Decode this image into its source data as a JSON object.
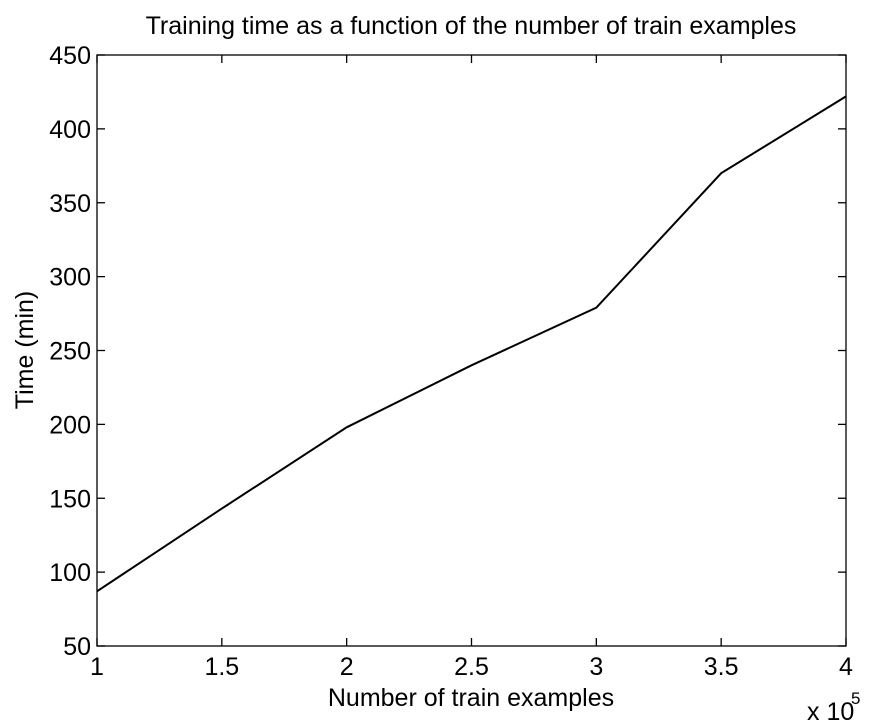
{
  "chart_data": {
    "type": "line",
    "title": "Training time as a function of the number of train examples",
    "xlabel": "Number of train examples",
    "ylabel": "Time (min)",
    "x_multiplier_base": "x 10",
    "x_multiplier_exp": "5",
    "xlim": [
      1,
      4
    ],
    "ylim": [
      50,
      450
    ],
    "xticks": [
      1,
      1.5,
      2,
      2.5,
      3,
      3.5,
      4
    ],
    "yticks": [
      50,
      100,
      150,
      200,
      250,
      300,
      350,
      400,
      450
    ],
    "grid": false,
    "line_color": "#000000",
    "series": [
      {
        "x": [
          1,
          1.5,
          2,
          2.5,
          3,
          3.5,
          4
        ],
        "y": [
          87,
          143,
          198,
          240,
          279,
          370,
          422
        ]
      }
    ]
  }
}
